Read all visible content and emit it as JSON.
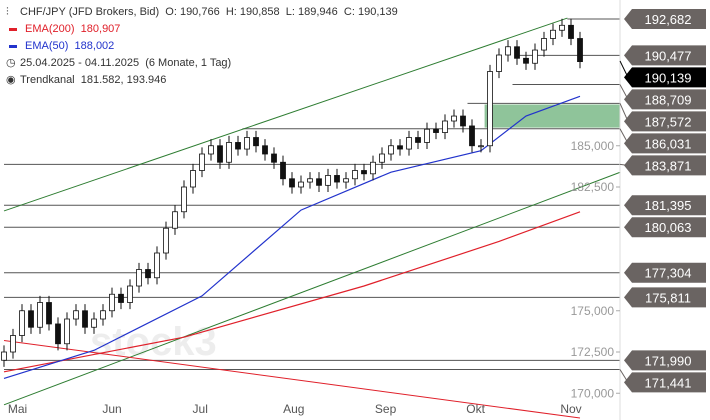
{
  "header": {
    "symbol": "CHF/JPY (JFD Brokers, Bid)",
    "open": "O: 190,766",
    "high": "H: 190,858",
    "low": "L: 189,946",
    "close": "C: 190,139"
  },
  "ema200": {
    "label": "EMA(200)",
    "value": "180,907",
    "color": "#e0202a"
  },
  "ema50": {
    "label": "EMA(50)",
    "value": "188,002",
    "color": "#2233cc"
  },
  "range": {
    "dates": "25.04.2025 - 04.11.2025",
    "period": "(6 Monate, 1 Tag)"
  },
  "trendkanal": {
    "label": "Trendkanal",
    "value": "181.582, 193.946"
  },
  "watermark": "stock3",
  "chart_data": {
    "type": "candlestick",
    "ylim": [
      169.4,
      193.8
    ],
    "y_ticks": [
      "185,000",
      "182,500",
      "175,000",
      "172,500",
      "170,000"
    ],
    "y_tick_values": [
      185,
      182.5,
      175,
      172.5,
      170
    ],
    "x_ticks": [
      {
        "label": "Mai",
        "i": 1.5
      },
      {
        "label": "Jun",
        "i": 12
      },
      {
        "label": "Jul",
        "i": 21.8
      },
      {
        "label": "Aug",
        "i": 32.2
      },
      {
        "label": "Sep",
        "i": 42.4
      },
      {
        "label": "Okt",
        "i": 52.4
      },
      {
        "label": "Nov",
        "i": 63
      }
    ],
    "closes": [
      172.5,
      173.5,
      175.0,
      174.0,
      175.5,
      174.2,
      173.0,
      174.5,
      175.0,
      174.0,
      174.5,
      175.0,
      176.0,
      175.5,
      176.5,
      177.5,
      177.0,
      178.5,
      180.0,
      181.0,
      182.5,
      183.5,
      184.5,
      185.0,
      184.0,
      185.2,
      184.8,
      185.5,
      185.0,
      184.5,
      184.0,
      183.0,
      182.5,
      182.8,
      183.0,
      182.6,
      183.2,
      182.8,
      183.0,
      183.5,
      183.3,
      184.0,
      184.5,
      185.0,
      184.8,
      185.5,
      185.2,
      186.0,
      185.8,
      186.5,
      186.8,
      186.2,
      185.0,
      185.0,
      189.5,
      190.5,
      191.0,
      190.3,
      190.0,
      190.8,
      191.5,
      192.0,
      192.3,
      191.5,
      190.1
    ],
    "ema50_points": [
      [
        0,
        170.9
      ],
      [
        10,
        172.6
      ],
      [
        22,
        175.9
      ],
      [
        33,
        181.1
      ],
      [
        43,
        183.4
      ],
      [
        53,
        184.7
      ],
      [
        58,
        186.8
      ],
      [
        64,
        188.0
      ]
    ],
    "ema200_points": [
      [
        0,
        171.3
      ],
      [
        20,
        173.4
      ],
      [
        40,
        176.5
      ],
      [
        55,
        179.2
      ],
      [
        64,
        181.0
      ]
    ],
    "trend_lines": [
      {
        "name": "upper-channel",
        "color": "#2e7d32",
        "from": [
          0,
          181.05
        ],
        "to": [
          62.6,
          192.74
        ]
      },
      {
        "name": "lower-channel",
        "color": "#2e7d32",
        "from": [
          0,
          169.3
        ],
        "to": [
          68.5,
          183.4
        ]
      },
      {
        "name": "downtrend",
        "color": "#e0202a",
        "from": [
          0,
          173.2
        ],
        "to": [
          64,
          168.5
        ]
      }
    ],
    "zone": {
      "from_index": 53.4,
      "top": 187.5,
      "bottom": 186.1,
      "color": "#8fc49a"
    },
    "levels": [
      {
        "label": "192,682",
        "value": 192.682,
        "from": 62.6
      },
      {
        "label": "190,477",
        "value": 190.477,
        "from": 57
      },
      {
        "label": "188,709",
        "value": 188.709,
        "from": 56.5
      },
      {
        "label": "187,572",
        "value": 187.572,
        "from": 51.5
      },
      {
        "label": "186,031",
        "value": 186.031,
        "from": 26.5
      },
      {
        "label": "183,871",
        "value": 183.871,
        "from": 0
      },
      {
        "label": "181,395",
        "value": 181.395,
        "from": 0
      },
      {
        "label": "180,063",
        "value": 180.063,
        "from": 0
      },
      {
        "label": "177,304",
        "value": 177.304,
        "from": 0
      },
      {
        "label": "175,811",
        "value": 175.811,
        "from": 0
      },
      {
        "label": "171,441",
        "value": 171.441,
        "from": 0
      },
      {
        "label": "171,990",
        "value": 171.99,
        "from": 0
      },
      {
        "label": "190,139",
        "value": 190.139,
        "from": 64,
        "current": true
      }
    ]
  }
}
